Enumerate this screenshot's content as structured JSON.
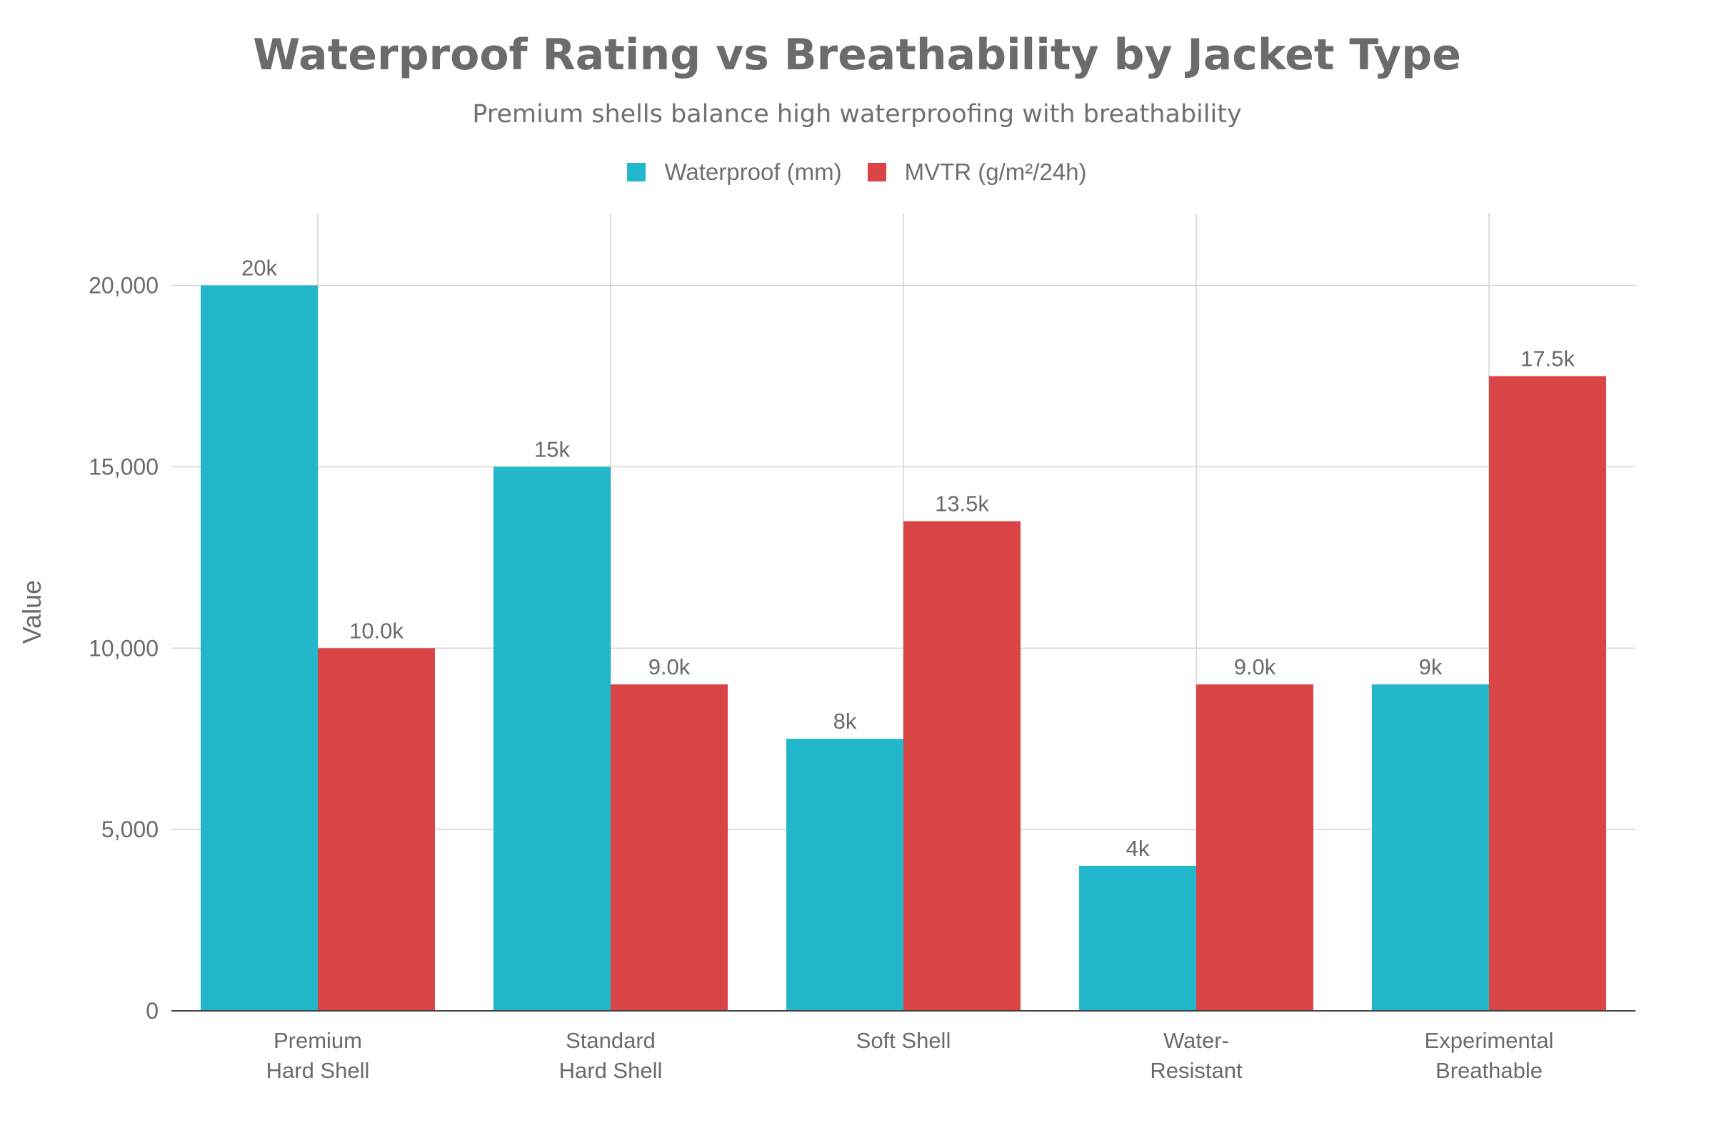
{
  "chart_data": {
    "type": "bar",
    "title": "Waterproof Rating vs Breathability by Jacket Type",
    "subtitle": "Premium shells balance high waterproofing with breathability",
    "xlabel": "",
    "ylabel": "Value",
    "ylim": [
      0,
      22000
    ],
    "yticks": [
      0,
      5000,
      10000,
      15000,
      20000
    ],
    "ytick_labels": [
      "0",
      "5,000",
      "10,000",
      "15,000",
      "20,000"
    ],
    "grid": true,
    "legend_position": "top-center",
    "categories": [
      [
        "Premium",
        "Hard Shell"
      ],
      [
        "Standard",
        "Hard Shell"
      ],
      [
        "Soft Shell"
      ],
      [
        "Water-",
        "Resistant"
      ],
      [
        "Experimental",
        "Breathable"
      ]
    ],
    "series": [
      {
        "name": "Waterproof (mm)",
        "color": "#22b7cb",
        "values": [
          20000,
          15000,
          7500,
          4000,
          9000
        ],
        "labels": [
          "20k",
          "15k",
          "8k",
          "4k",
          "9k"
        ]
      },
      {
        "name": "MVTR (g/m²/24h)",
        "color": "#d94546",
        "values": [
          10000,
          9000,
          13500,
          9000,
          17500
        ],
        "labels": [
          "10.0k",
          "9.0k",
          "13.5k",
          "9.0k",
          "17.5k"
        ]
      }
    ]
  }
}
